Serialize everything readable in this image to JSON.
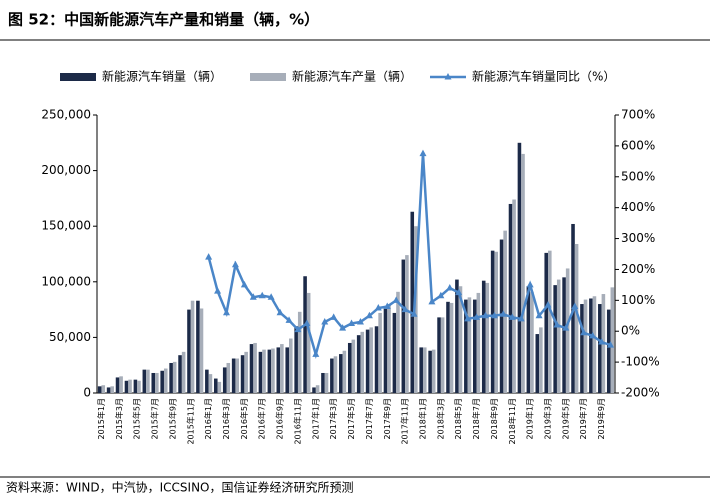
{
  "chart_data": {
    "type": "bar_line",
    "title": "图 52：中国新能源汽车产量和销量（辆，%）",
    "source": "资料来源：WIND，中汽协，ICCSINO，国信证券经济研究所预测",
    "categories": [
      "2015年1月",
      null,
      "2015年3月",
      null,
      "2015年5月",
      null,
      "2015年7月",
      null,
      "2015年9月",
      null,
      "2015年11月",
      null,
      "2016年1月",
      null,
      "2016年3月",
      null,
      "2016年5月",
      null,
      "2016年7月",
      null,
      "2016年9月",
      null,
      "2016年11月",
      null,
      "2017年1月",
      null,
      "2017年3月",
      null,
      "2017年5月",
      null,
      "2017年7月",
      null,
      "2017年9月",
      null,
      "2017年11月",
      null,
      "2018年1月",
      null,
      "2018年3月",
      null,
      "2018年5月",
      null,
      "2018年7月",
      null,
      "2018年9月",
      null,
      "2018年11月",
      null,
      "2019年1月",
      null,
      "2019年3月",
      null,
      "2019年5月",
      null,
      "2019年7月",
      null,
      "2019年9月",
      null
    ],
    "series": [
      {
        "name": "新能源汽车销量（辆）",
        "color": "#1c2a48",
        "kind": "bar",
        "values": [
          6000,
          5000,
          14000,
          11000,
          12000,
          21000,
          18000,
          20000,
          27000,
          34000,
          75000,
          83000,
          21000,
          13000,
          23000,
          31000,
          34000,
          44000,
          37000,
          39000,
          41000,
          41000,
          60000,
          105000,
          5000,
          18000,
          31000,
          35000,
          45000,
          52000,
          57000,
          60000,
          78000,
          72000,
          120000,
          163000,
          41000,
          38000,
          68000,
          82000,
          102000,
          84000,
          84000,
          101000,
          128000,
          138000,
          170000,
          225000,
          96000,
          53000,
          126000,
          97000,
          104000,
          152000,
          80000,
          85000,
          80000,
          75000
        ]
      },
      {
        "name": "新能源汽车产量（辆）",
        "color": "#a7aeb9",
        "kind": "bar",
        "values": [
          7000,
          6000,
          15000,
          12000,
          11000,
          21000,
          18000,
          22000,
          28000,
          37000,
          83000,
          76000,
          17000,
          10000,
          27000,
          31000,
          37000,
          45000,
          39000,
          40000,
          44000,
          49000,
          73000,
          90000,
          7000,
          18000,
          33000,
          38000,
          48000,
          55000,
          59000,
          72000,
          80000,
          91000,
          124000,
          150000,
          41000,
          39000,
          68000,
          81000,
          96000,
          86000,
          90000,
          99000,
          127000,
          146000,
          174000,
          215000,
          91000,
          59000,
          128000,
          102000,
          112000,
          134000,
          84000,
          87000,
          89000,
          95000
        ]
      },
      {
        "name": "新能源汽车销量同比（%）",
        "color": "#4a86c8",
        "kind": "line",
        "axis": "y2",
        "values": [
          null,
          null,
          null,
          null,
          null,
          null,
          null,
          null,
          null,
          null,
          null,
          null,
          240,
          130,
          60,
          215,
          150,
          110,
          115,
          110,
          60,
          35,
          5,
          25,
          -75,
          30,
          45,
          10,
          25,
          30,
          50,
          75,
          80,
          100,
          70,
          55,
          575,
          95,
          115,
          140,
          125,
          40,
          45,
          50,
          50,
          55,
          45,
          40,
          150,
          50,
          85,
          20,
          10,
          80,
          -5,
          -15,
          -35,
          -45
        ]
      }
    ],
    "ylim": [
      0,
      250000
    ],
    "yticks": [
      0,
      {
        "value": 50000,
        "label": "50,000"
      },
      {
        "value": 100000,
        "label": "100,000"
      },
      {
        "value": 150000,
        "label": "150,000"
      },
      {
        "value": 200000,
        "label": "200,000"
      },
      {
        "value": 250000,
        "label": "250,000"
      }
    ],
    "y2lim": [
      -200,
      700
    ],
    "y2ticks": [
      {
        "value": -200,
        "label": "-200%"
      },
      {
        "value": -100,
        "label": "-100%"
      },
      {
        "value": 0,
        "label": "0%"
      },
      {
        "value": 100,
        "label": "100%"
      },
      {
        "value": 200,
        "label": "200%"
      },
      {
        "value": 300,
        "label": "300%"
      },
      {
        "value": 400,
        "label": "400%"
      },
      {
        "value": 500,
        "label": "500%"
      },
      {
        "value": 600,
        "label": "600%"
      },
      {
        "value": 700,
        "label": "700%"
      }
    ]
  }
}
